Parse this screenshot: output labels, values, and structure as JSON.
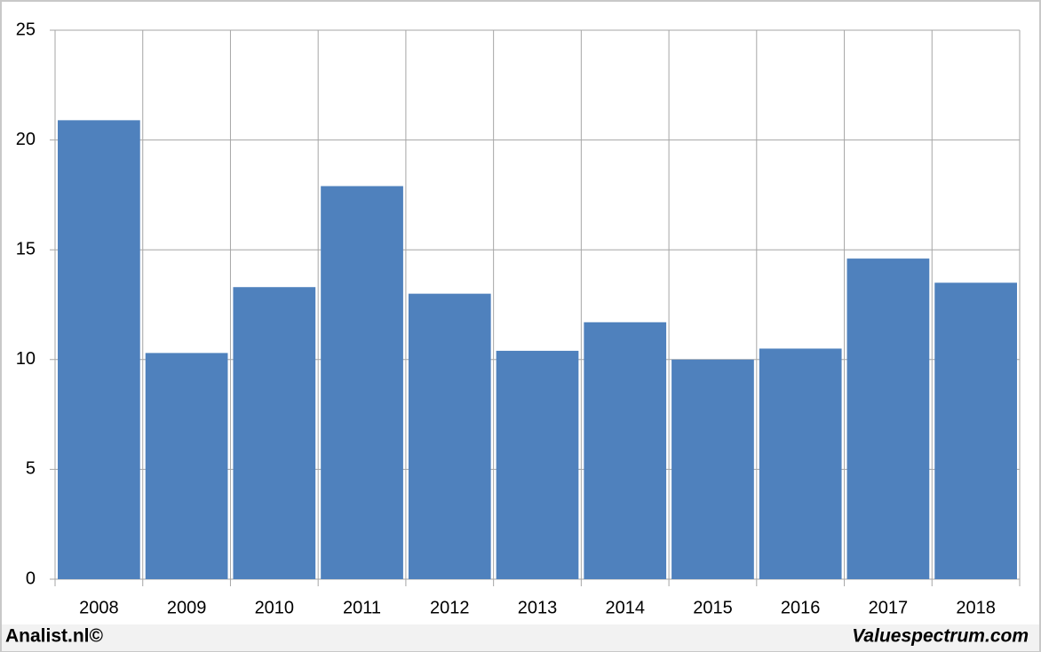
{
  "chart_data": {
    "type": "bar",
    "categories": [
      "2008",
      "2009",
      "2010",
      "2011",
      "2012",
      "2013",
      "2014",
      "2015",
      "2016",
      "2017",
      "2018"
    ],
    "values": [
      20.9,
      10.3,
      13.3,
      17.9,
      13.0,
      10.4,
      11.7,
      10.0,
      10.5,
      14.6,
      13.5
    ],
    "color": "#4f81bd",
    "ylim": [
      0,
      25
    ],
    "yticks": [
      0,
      5,
      10,
      15,
      20,
      25
    ],
    "grid": true
  },
  "footer": {
    "left": "Analist.nl©",
    "right": "Valuespectrum.com"
  }
}
